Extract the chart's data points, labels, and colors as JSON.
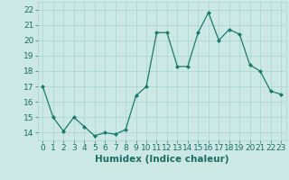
{
  "x": [
    0,
    1,
    2,
    3,
    4,
    5,
    6,
    7,
    8,
    9,
    10,
    11,
    12,
    13,
    14,
    15,
    16,
    17,
    18,
    19,
    20,
    21,
    22,
    23
  ],
  "y": [
    17.0,
    15.0,
    14.1,
    15.0,
    14.4,
    13.8,
    14.0,
    13.9,
    14.2,
    16.4,
    17.0,
    20.5,
    20.5,
    18.3,
    18.3,
    20.5,
    21.8,
    20.0,
    20.7,
    20.4,
    18.4,
    18.0,
    16.7,
    16.5
  ],
  "xlabel": "Humidex (Indice chaleur)",
  "ylim": [
    13.5,
    22.5
  ],
  "xlim": [
    -0.5,
    23.5
  ],
  "yticks": [
    14,
    15,
    16,
    17,
    18,
    19,
    20,
    21,
    22
  ],
  "xticks": [
    0,
    1,
    2,
    3,
    4,
    5,
    6,
    7,
    8,
    9,
    10,
    11,
    12,
    13,
    14,
    15,
    16,
    17,
    18,
    19,
    20,
    21,
    22,
    23
  ],
  "line_color": "#1a7a6e",
  "marker_color": "#1a7a6e",
  "bg_color": "#cce8e4",
  "grid_color": "#aad4ce",
  "label_color": "#1a6e64",
  "xlabel_fontsize": 7.5,
  "tick_fontsize": 6.5
}
